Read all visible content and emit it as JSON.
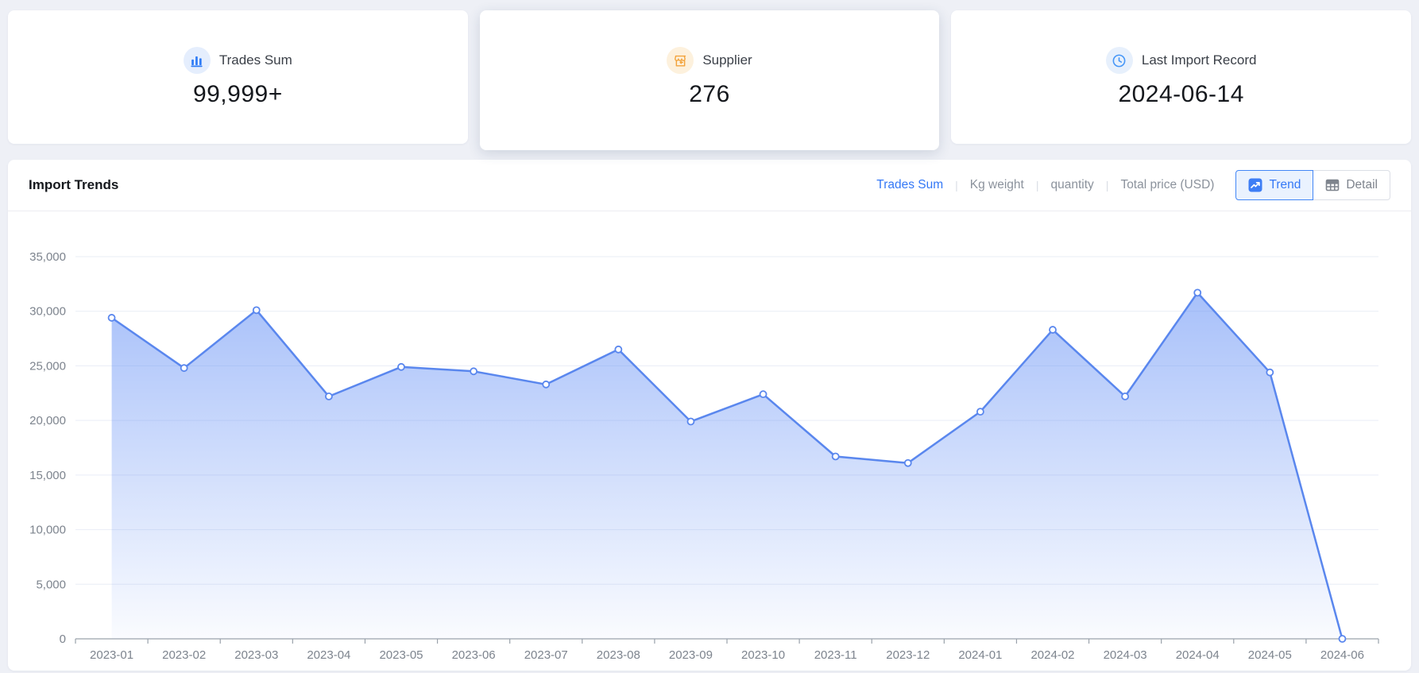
{
  "cards": [
    {
      "label": "Trades Sum",
      "value": "99,999+",
      "icon": "bar-chart-icon",
      "accent": "#2f7cf6",
      "icon_bg": "#e5eefd"
    },
    {
      "label": "Supplier",
      "value": "276",
      "icon": "storefront-icon",
      "accent": "#f2a33c",
      "icon_bg": "#fdf1dd"
    },
    {
      "label": "Last Import Record",
      "value": "2024-06-14",
      "icon": "clock-icon",
      "accent": "#4596f7",
      "icon_bg": "#e7f0fc"
    }
  ],
  "import_trends": {
    "title": "Import Trends",
    "metric_tabs": [
      {
        "label": "Trades Sum",
        "active": true
      },
      {
        "label": "Kg weight",
        "active": false
      },
      {
        "label": "quantity",
        "active": false
      },
      {
        "label": "Total price (USD)",
        "active": false
      }
    ],
    "view_toggle": [
      {
        "label": "Trend",
        "active": true,
        "icon": "trend-icon"
      },
      {
        "label": "Detail",
        "active": false,
        "icon": "table-icon"
      }
    ]
  },
  "chart_data": {
    "type": "area",
    "title": "Import Trends",
    "xlabel": "",
    "ylabel": "",
    "x": [
      "2023-01",
      "2023-02",
      "2023-03",
      "2023-04",
      "2023-05",
      "2023-06",
      "2023-07",
      "2023-08",
      "2023-09",
      "2023-10",
      "2023-11",
      "2023-12",
      "2024-01",
      "2024-02",
      "2024-03",
      "2024-04",
      "2024-05",
      "2024-06"
    ],
    "series": [
      {
        "name": "Trades Sum",
        "values": [
          29400,
          24800,
          30100,
          22200,
          24900,
          24500,
          23300,
          26500,
          19900,
          22400,
          16700,
          16100,
          20800,
          28300,
          22200,
          31700,
          24400,
          0
        ]
      }
    ],
    "ylim": [
      0,
      35000
    ],
    "ytick_step": 5000,
    "grid": true,
    "legend_position": "none",
    "line_color": "#5a87ee",
    "marker_fill": "#ffffff",
    "area_top_color": "rgba(95,140,245,0.60)",
    "area_bottom_color": "rgba(95,140,245,0.03)",
    "grid_color": "#e9edf6",
    "axis_color": "#9aa2ab",
    "tick_label_color": "#7d848e"
  }
}
